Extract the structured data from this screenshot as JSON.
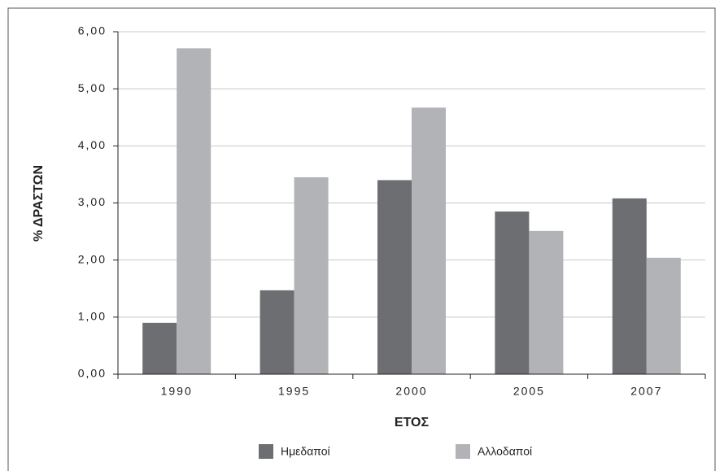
{
  "chart_data": {
    "type": "bar",
    "categories": [
      "1990",
      "1995",
      "2000",
      "2005",
      "2007"
    ],
    "series": [
      {
        "name": "Ημεδαποί",
        "color": "#6d6e71",
        "values": [
          0.9,
          1.47,
          3.4,
          2.85,
          3.08
        ]
      },
      {
        "name": "Αλλοδαποί",
        "color": "#b1b3b6",
        "values": [
          5.71,
          3.45,
          4.67,
          2.51,
          2.04
        ]
      }
    ],
    "y_label": "% ΔΡΑΣΤΩΝ",
    "x_label": "ΕΤΟΣ",
    "ylim": [
      0,
      6
    ],
    "yticks": [
      {
        "value": 0,
        "label": "0,00"
      },
      {
        "value": 1,
        "label": "1,00"
      },
      {
        "value": 2,
        "label": "2,00"
      },
      {
        "value": 3,
        "label": "3,00"
      },
      {
        "value": 4,
        "label": "4,00"
      },
      {
        "value": 5,
        "label": "5,00"
      },
      {
        "value": 6,
        "label": "6,00"
      }
    ],
    "grid": true,
    "legend": "bottom"
  }
}
